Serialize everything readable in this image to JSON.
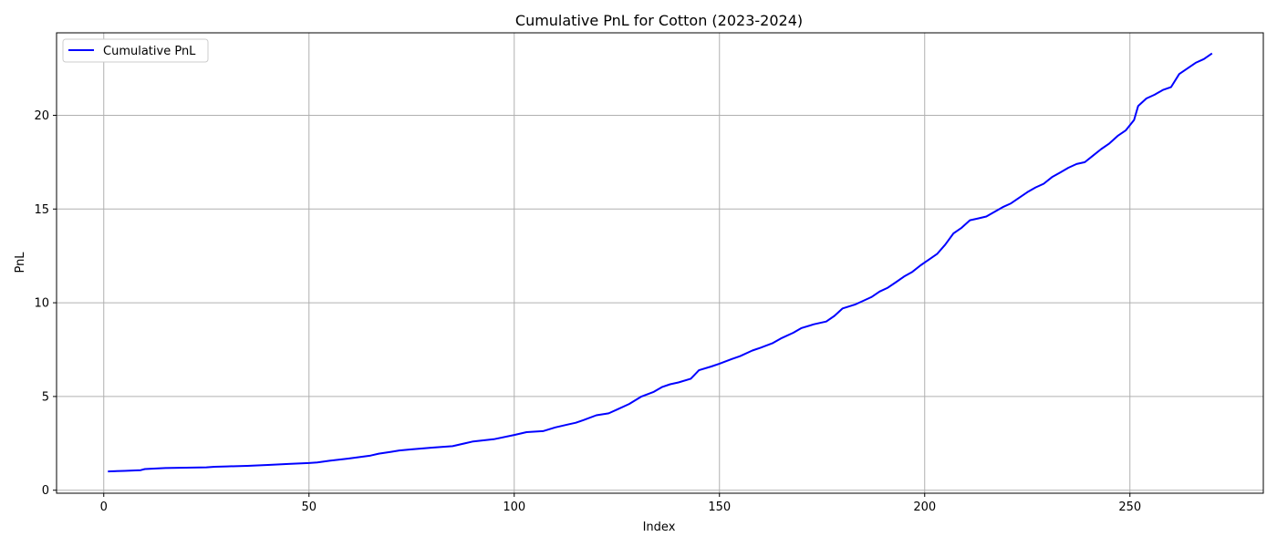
{
  "chart_data": {
    "type": "line",
    "title": "Cumulative PnL for Cotton (2023-2024)",
    "xlabel": "Index",
    "ylabel": "PnL",
    "xlim": [
      -11.5,
      282.5
    ],
    "ylim": [
      -0.16,
      24.4
    ],
    "xticks": [
      0,
      50,
      100,
      150,
      200,
      250
    ],
    "yticks": [
      0,
      5,
      10,
      15,
      20
    ],
    "grid": true,
    "legend_position": "upper-left",
    "line_color": "#0000ff",
    "series": [
      {
        "name": "Cumulative PnL",
        "x": [
          1,
          5,
          9,
          10,
          15,
          20,
          25,
          27,
          30,
          35,
          40,
          45,
          50,
          52,
          55,
          60,
          65,
          67,
          70,
          72,
          75,
          80,
          85,
          90,
          95,
          100,
          103,
          107,
          110,
          113,
          115,
          117,
          120,
          123,
          125,
          128,
          131,
          134,
          136,
          138,
          140,
          143,
          145,
          148,
          150,
          153,
          155,
          158,
          160,
          163,
          165,
          168,
          170,
          173,
          176,
          178,
          180,
          183,
          185,
          187,
          189,
          191,
          193,
          195,
          197,
          199,
          201,
          203,
          205,
          207,
          209,
          211,
          213,
          215,
          217,
          219,
          221,
          223,
          225,
          227,
          229,
          231,
          233,
          235,
          237,
          239,
          241,
          243,
          245,
          247,
          249,
          251,
          252,
          254,
          256,
          258,
          260,
          262,
          264,
          266,
          268,
          270
        ],
        "y": [
          1.0,
          1.03,
          1.07,
          1.13,
          1.18,
          1.2,
          1.22,
          1.25,
          1.27,
          1.3,
          1.35,
          1.4,
          1.45,
          1.48,
          1.57,
          1.7,
          1.85,
          1.95,
          2.05,
          2.12,
          2.18,
          2.27,
          2.35,
          2.6,
          2.72,
          2.95,
          3.1,
          3.15,
          3.35,
          3.5,
          3.6,
          3.75,
          4.0,
          4.1,
          4.3,
          4.6,
          5.0,
          5.25,
          5.5,
          5.65,
          5.75,
          5.95,
          6.4,
          6.6,
          6.75,
          7.0,
          7.15,
          7.45,
          7.6,
          7.85,
          8.1,
          8.4,
          8.65,
          8.85,
          9.0,
          9.3,
          9.7,
          9.9,
          10.1,
          10.3,
          10.6,
          10.8,
          11.1,
          11.4,
          11.65,
          12.0,
          12.3,
          12.6,
          13.1,
          13.7,
          14.0,
          14.4,
          14.5,
          14.6,
          14.85,
          15.1,
          15.3,
          15.6,
          15.9,
          16.15,
          16.35,
          16.7,
          16.95,
          17.2,
          17.4,
          17.5,
          17.85,
          18.2,
          18.5,
          18.9,
          19.2,
          19.75,
          20.5,
          20.9,
          21.1,
          21.35,
          21.5,
          22.2,
          22.5,
          22.8,
          23.0,
          23.3
        ]
      }
    ]
  }
}
